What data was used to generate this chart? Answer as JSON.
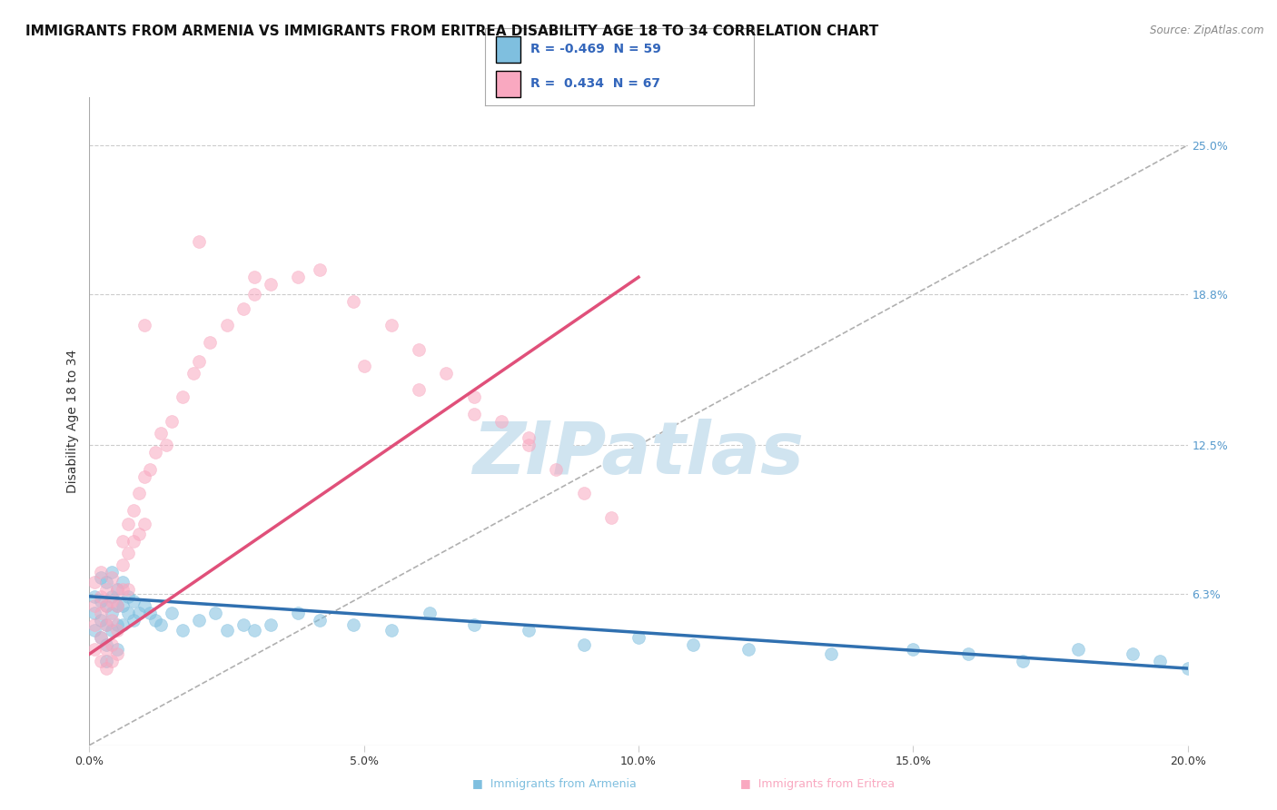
{
  "title": "IMMIGRANTS FROM ARMENIA VS IMMIGRANTS FROM ERITREA DISABILITY AGE 18 TO 34 CORRELATION CHART",
  "source": "Source: ZipAtlas.com",
  "ylabel": "Disability Age 18 to 34",
  "xlim": [
    0.0,
    0.2
  ],
  "ylim": [
    0.0,
    0.27
  ],
  "xticks": [
    0.0,
    0.05,
    0.1,
    0.15,
    0.2
  ],
  "xticklabels": [
    "0.0%",
    "5.0%",
    "10.0%",
    "15.0%",
    "20.0%"
  ],
  "yticks_right": [
    0.063,
    0.125,
    0.188,
    0.25
  ],
  "yticklabels_right": [
    "6.3%",
    "12.5%",
    "18.8%",
    "25.0%"
  ],
  "legend_r_armenia": "-0.469",
  "legend_n_armenia": "59",
  "legend_r_eritrea": "0.434",
  "legend_n_eritrea": "67",
  "armenia_color": "#7fbfdf",
  "eritrea_color": "#f9a8c0",
  "armenia_line_color": "#3070b0",
  "eritrea_line_color": "#e0507a",
  "ref_line_color": "#b0b0b0",
  "background_color": "#ffffff",
  "grid_color": "#cccccc",
  "watermark": "ZIPatlas",
  "watermark_color": "#d0e4f0",
  "title_fontsize": 11,
  "label_fontsize": 10,
  "tick_fontsize": 9,
  "armenia_x": [
    0.001,
    0.001,
    0.001,
    0.002,
    0.002,
    0.002,
    0.002,
    0.003,
    0.003,
    0.003,
    0.003,
    0.003,
    0.004,
    0.004,
    0.004,
    0.004,
    0.005,
    0.005,
    0.005,
    0.005,
    0.006,
    0.006,
    0.006,
    0.007,
    0.007,
    0.008,
    0.008,
    0.009,
    0.01,
    0.011,
    0.012,
    0.013,
    0.015,
    0.017,
    0.02,
    0.023,
    0.025,
    0.028,
    0.03,
    0.033,
    0.038,
    0.042,
    0.048,
    0.055,
    0.062,
    0.07,
    0.08,
    0.09,
    0.1,
    0.11,
    0.12,
    0.135,
    0.15,
    0.16,
    0.17,
    0.18,
    0.19,
    0.195,
    0.2
  ],
  "armenia_y": [
    0.062,
    0.055,
    0.048,
    0.07,
    0.06,
    0.052,
    0.045,
    0.068,
    0.058,
    0.05,
    0.042,
    0.035,
    0.072,
    0.062,
    0.055,
    0.048,
    0.065,
    0.058,
    0.05,
    0.04,
    0.068,
    0.058,
    0.05,
    0.062,
    0.055,
    0.06,
    0.052,
    0.055,
    0.058,
    0.055,
    0.052,
    0.05,
    0.055,
    0.048,
    0.052,
    0.055,
    0.048,
    0.05,
    0.048,
    0.05,
    0.055,
    0.052,
    0.05,
    0.048,
    0.055,
    0.05,
    0.048,
    0.042,
    0.045,
    0.042,
    0.04,
    0.038,
    0.04,
    0.038,
    0.035,
    0.04,
    0.038,
    0.035,
    0.032
  ],
  "eritrea_x": [
    0.001,
    0.001,
    0.001,
    0.001,
    0.002,
    0.002,
    0.002,
    0.002,
    0.002,
    0.003,
    0.003,
    0.003,
    0.003,
    0.003,
    0.004,
    0.004,
    0.004,
    0.004,
    0.004,
    0.005,
    0.005,
    0.005,
    0.005,
    0.006,
    0.006,
    0.006,
    0.007,
    0.007,
    0.007,
    0.008,
    0.008,
    0.009,
    0.009,
    0.01,
    0.01,
    0.011,
    0.012,
    0.013,
    0.014,
    0.015,
    0.017,
    0.019,
    0.02,
    0.022,
    0.025,
    0.028,
    0.03,
    0.033,
    0.038,
    0.042,
    0.048,
    0.055,
    0.06,
    0.065,
    0.07,
    0.075,
    0.08,
    0.085,
    0.09,
    0.095,
    0.01,
    0.02,
    0.03,
    0.05,
    0.06,
    0.07,
    0.08
  ],
  "eritrea_y": [
    0.068,
    0.058,
    0.05,
    0.04,
    0.072,
    0.062,
    0.055,
    0.045,
    0.035,
    0.065,
    0.058,
    0.05,
    0.04,
    0.032,
    0.07,
    0.06,
    0.052,
    0.042,
    0.035,
    0.065,
    0.058,
    0.048,
    0.038,
    0.085,
    0.075,
    0.065,
    0.092,
    0.08,
    0.065,
    0.098,
    0.085,
    0.105,
    0.088,
    0.112,
    0.092,
    0.115,
    0.122,
    0.13,
    0.125,
    0.135,
    0.145,
    0.155,
    0.16,
    0.168,
    0.175,
    0.182,
    0.188,
    0.192,
    0.195,
    0.198,
    0.185,
    0.175,
    0.165,
    0.155,
    0.145,
    0.135,
    0.125,
    0.115,
    0.105,
    0.095,
    0.175,
    0.21,
    0.195,
    0.158,
    0.148,
    0.138,
    0.128
  ],
  "arm_line_x0": 0.0,
  "arm_line_x1": 0.2,
  "arm_line_y0": 0.062,
  "arm_line_y1": 0.032,
  "eri_line_x0": 0.0,
  "eri_line_x1": 0.1,
  "eri_line_y0": 0.038,
  "eri_line_y1": 0.195,
  "ref_line_x0": 0.0,
  "ref_line_x1": 0.2,
  "ref_line_y0": 0.0,
  "ref_line_y1": 0.25
}
